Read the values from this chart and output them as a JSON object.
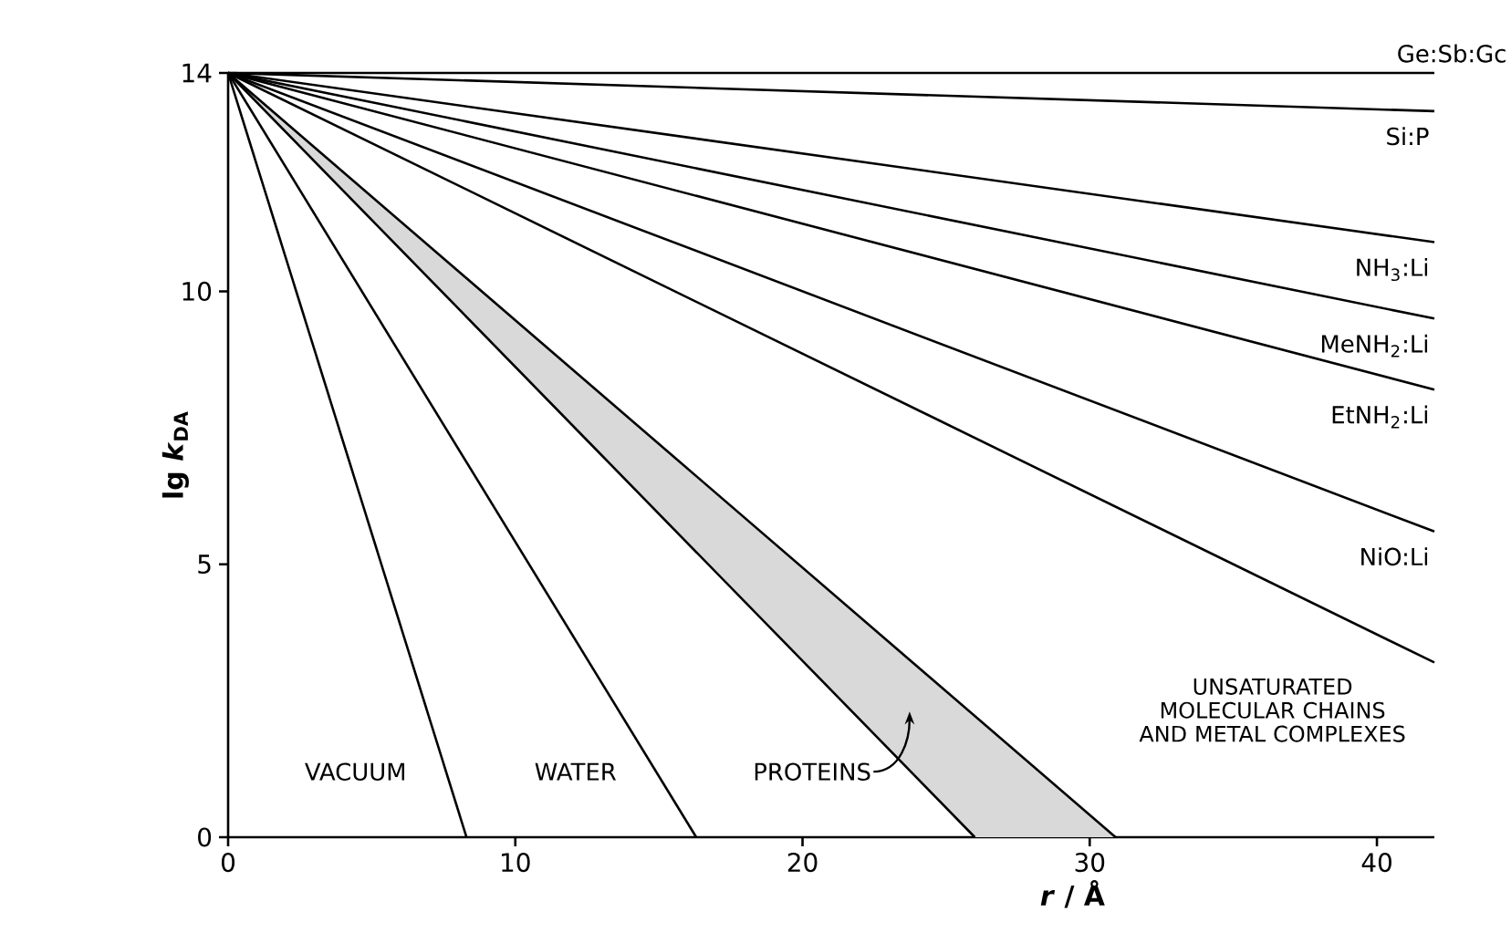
{
  "chart_data": {
    "type": "line",
    "xlabel": "*r* / Å",
    "ylabel": "lg *k*$_{DA}$",
    "xlim": [
      0,
      42
    ],
    "ylim": [
      0,
      14
    ],
    "xticks": [
      0,
      10,
      20,
      30,
      40
    ],
    "yticks": [
      0,
      5,
      10,
      14
    ],
    "grid": false,
    "marker": "none",
    "line_style": "solid",
    "series": [
      {
        "name": "Ge:Sb:Gc",
        "color": "#000000",
        "x": [
          0,
          42
        ],
        "values": [
          14,
          14
        ]
      },
      {
        "name": "Si:P",
        "color": "#000000",
        "x": [
          0,
          42
        ],
        "values": [
          14,
          13.3
        ]
      },
      {
        "name": "NH$_{3}$:Li",
        "color": "#000000",
        "x": [
          0,
          42
        ],
        "values": [
          14,
          10.9
        ]
      },
      {
        "name": "MeNH$_{2}$:Li",
        "color": "#000000",
        "x": [
          0,
          42
        ],
        "values": [
          14,
          9.5
        ]
      },
      {
        "name": "EtNH$_{2}$:Li",
        "color": "#000000",
        "x": [
          0,
          42
        ],
        "values": [
          14,
          8.2
        ]
      },
      {
        "name": "NiO:Li",
        "color": "#000000",
        "x": [
          0,
          42
        ],
        "values": [
          14,
          5.6
        ]
      },
      {
        "name": "UNSATURATED MOLECULAR CHAINS AND METAL COMPLEXES",
        "color": "#000000",
        "x": [
          0,
          42
        ],
        "values": [
          14,
          3.2
        ]
      },
      {
        "name": "VACUUM",
        "color": "#000000",
        "x": [
          0,
          8.3
        ],
        "values": [
          14,
          0
        ]
      },
      {
        "name": "WATER",
        "color": "#000000",
        "x": [
          0,
          16.3
        ],
        "values": [
          14,
          0
        ]
      },
      {
        "name": "PROTEINS",
        "color": "#000000",
        "x": [
          0,
          13,
          26.0,
          30.9
        ],
        "values": [
          14,
          7.0,
          0,
          null
        ],
        "lower": [
          14,
          7.0,
          0,
          0
        ],
        "upper": [
          14,
          8.1,
          2.2,
          0
        ]
      },
      {
        "color": "#000000",
        "x": [
          0,
          30.9
        ],
        "values": [
          14,
          0
        ]
      }
    ]
  }
}
